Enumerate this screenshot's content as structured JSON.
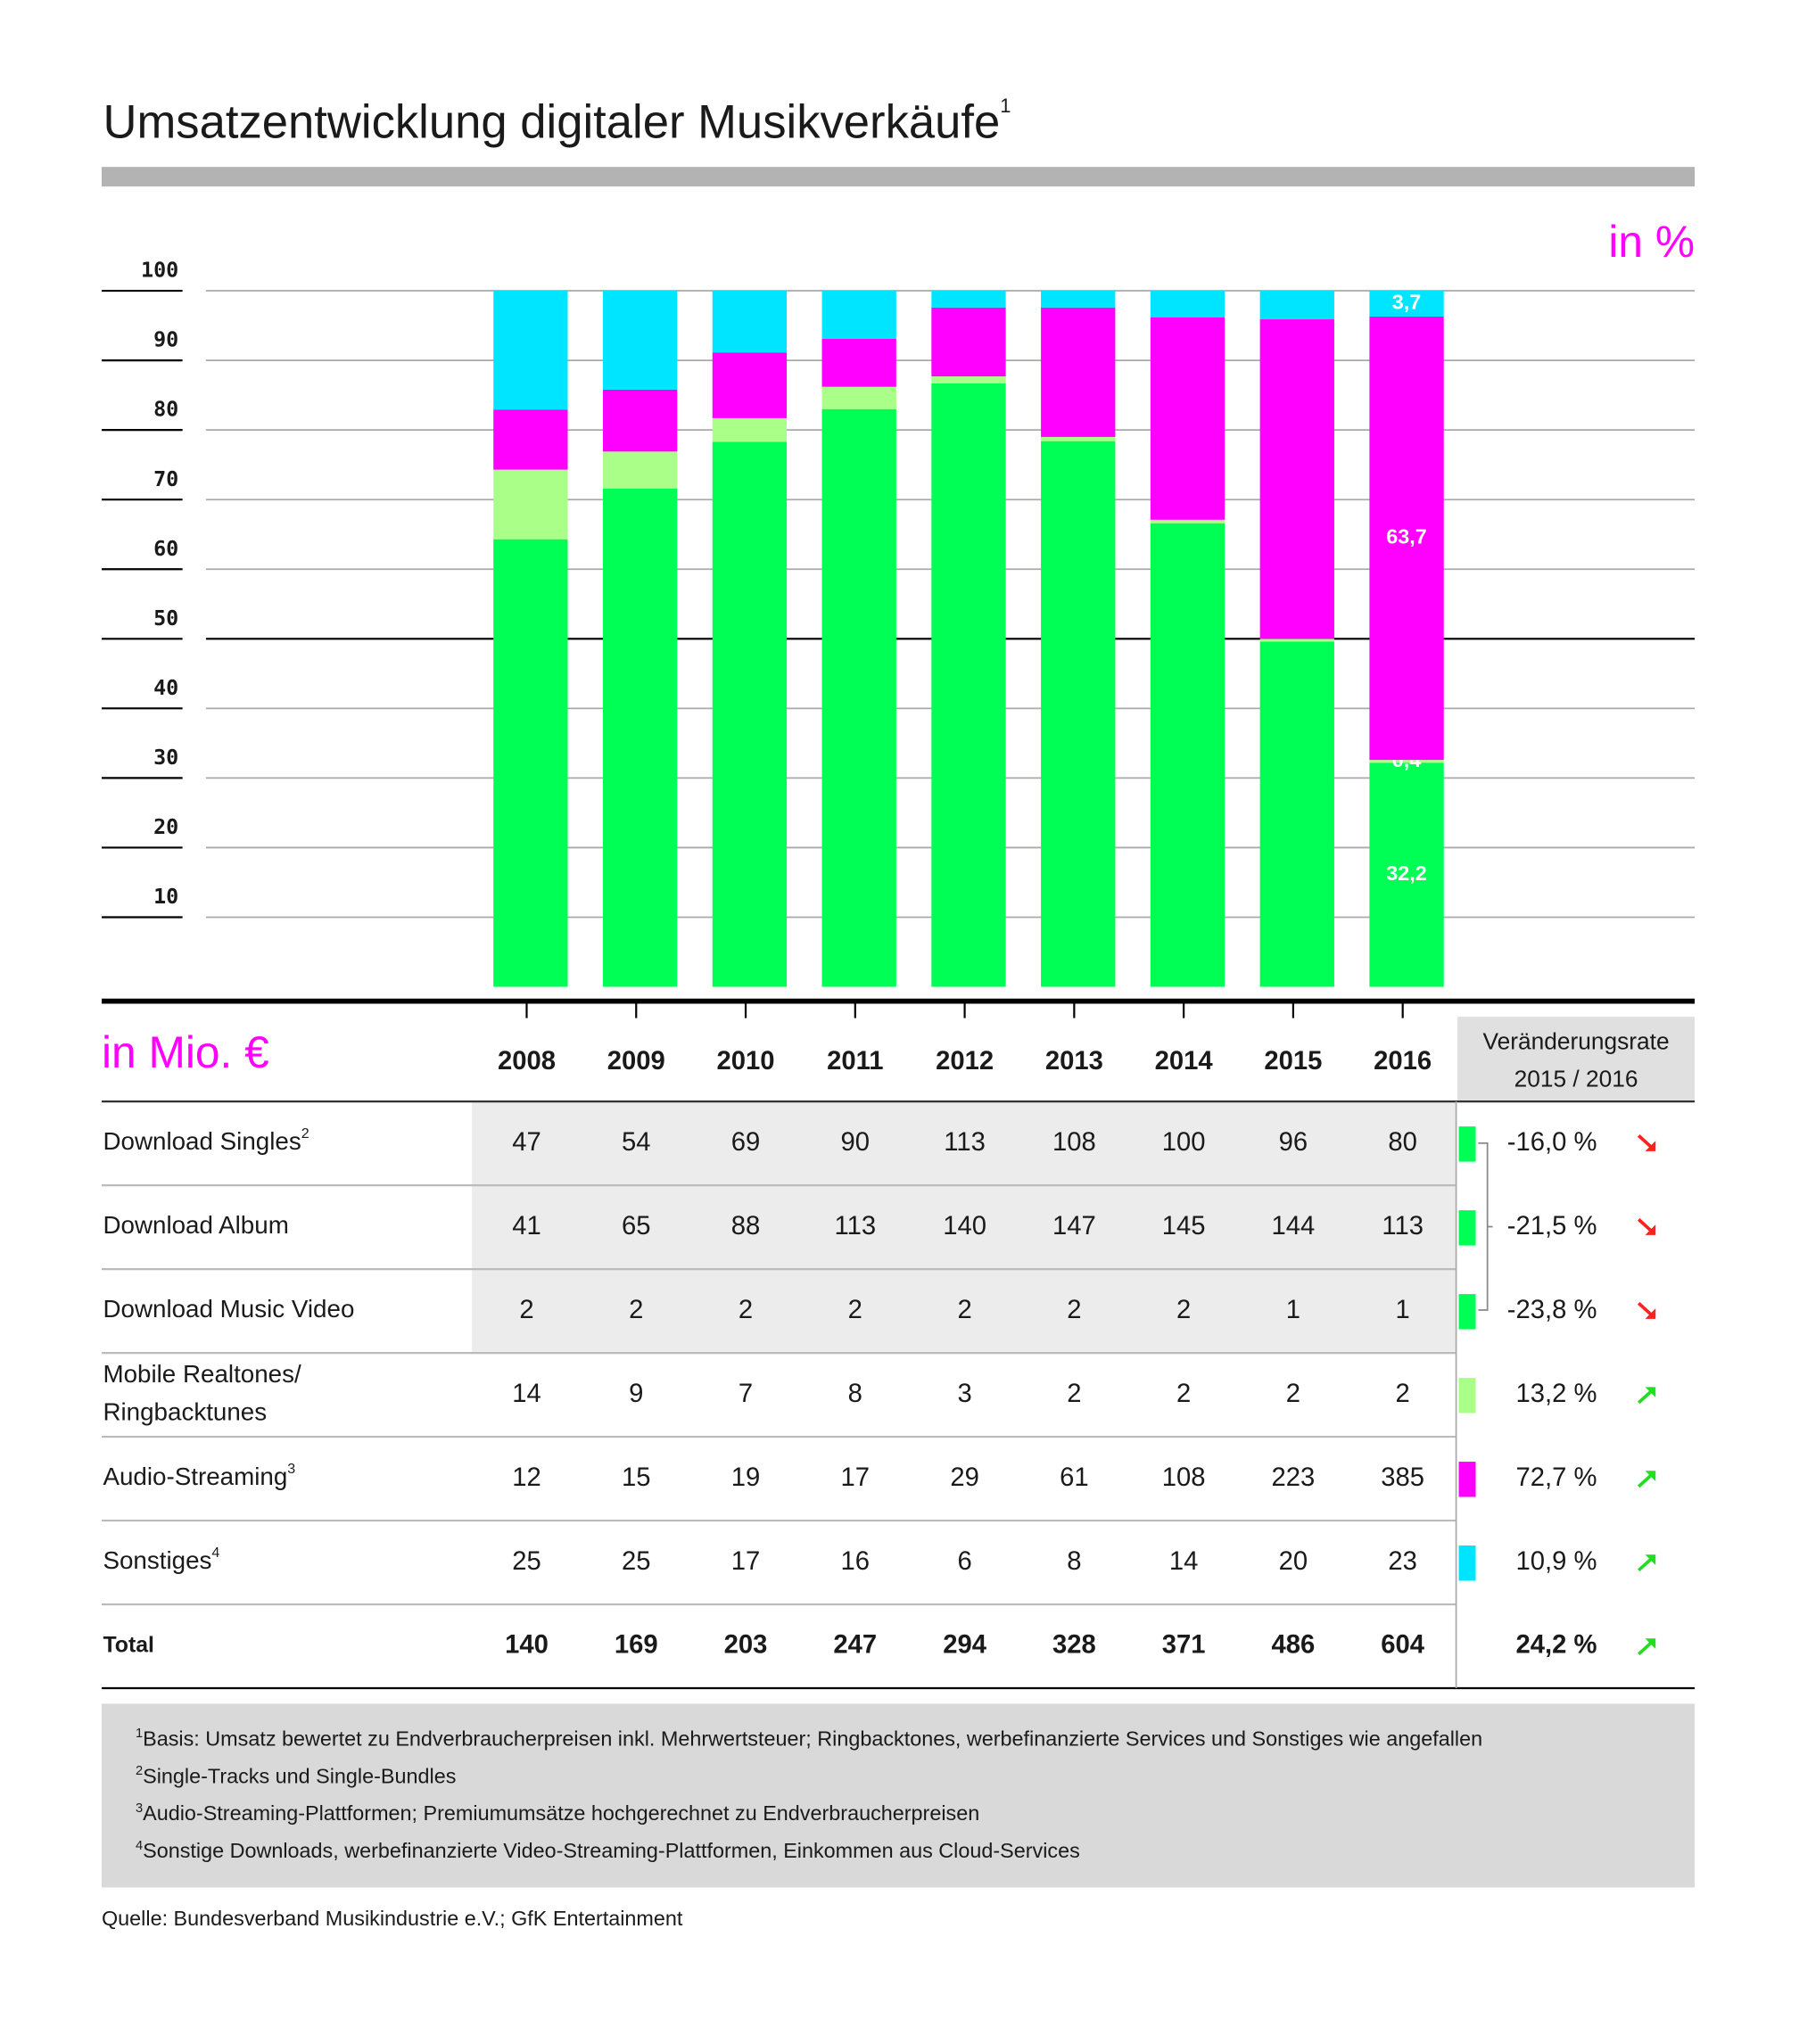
{
  "title": "Umsatzentwicklung digitaler Musikverkäufe",
  "title_sup": "1",
  "chart_data": {
    "type": "bar",
    "stacked": true,
    "annotation": "in %",
    "categories": [
      "2008",
      "2009",
      "2010",
      "2011",
      "2012",
      "2013",
      "2014",
      "2015",
      "2016"
    ],
    "series": [
      {
        "color": "#00ff55",
        "values": [
          64.3,
          71.6,
          78.3,
          83.0,
          86.7,
          78.4,
          66.6,
          49.6,
          32.2
        ],
        "value_labels": [
          null,
          null,
          null,
          null,
          null,
          null,
          null,
          null,
          "32,2"
        ]
      },
      {
        "color": "#aaff88",
        "values": [
          10.0,
          5.3,
          3.4,
          3.2,
          1.0,
          0.6,
          0.5,
          0.4,
          0.4
        ],
        "value_labels": [
          null,
          null,
          null,
          null,
          null,
          null,
          null,
          null,
          "0,4"
        ]
      },
      {
        "color": "#ff00ff",
        "values": [
          8.6,
          8.9,
          9.4,
          6.9,
          9.9,
          18.6,
          29.1,
          45.9,
          63.7
        ],
        "value_labels": [
          null,
          null,
          null,
          null,
          null,
          null,
          null,
          null,
          "63,7"
        ]
      },
      {
        "color": "#00e5ff",
        "values": [
          17.1,
          14.2,
          8.9,
          6.9,
          2.4,
          2.4,
          3.8,
          4.1,
          3.7
        ],
        "value_labels": [
          null,
          null,
          null,
          null,
          null,
          null,
          null,
          null,
          "3,7"
        ]
      }
    ],
    "ylim": [
      0,
      100
    ],
    "yticks": [
      10,
      20,
      30,
      40,
      50,
      60,
      70,
      80,
      90,
      100
    ],
    "grid": true,
    "reference_line": 50
  },
  "table": {
    "unit_label": "in Mio. €",
    "change_header": [
      "Veränderungsrate",
      "2015 / 2016"
    ],
    "rows": [
      {
        "label": [
          "Download Singles"
        ],
        "sup": "2",
        "values": [
          47,
          54,
          69,
          90,
          113,
          108,
          100,
          96,
          80
        ],
        "change": "-16,0 %",
        "trend": "down",
        "color": "#00ff55"
      },
      {
        "label": [
          "Download Album"
        ],
        "values": [
          41,
          65,
          88,
          113,
          140,
          147,
          145,
          144,
          113
        ],
        "change": "-21,5 %",
        "trend": "down",
        "color": "#00ff55"
      },
      {
        "label": [
          "Download Music Video"
        ],
        "values": [
          2,
          2,
          2,
          2,
          2,
          2,
          2,
          1,
          1
        ],
        "change": "-23,8 %",
        "trend": "down",
        "color": "#00ff55"
      },
      {
        "label": [
          "Mobile Realtones/",
          "Ringbacktunes"
        ],
        "values": [
          14,
          9,
          7,
          8,
          3,
          2,
          2,
          2,
          2
        ],
        "change": "13,2 %",
        "trend": "up",
        "color": "#aaff88"
      },
      {
        "label": [
          "Audio-Streaming"
        ],
        "sup": "3",
        "values": [
          12,
          15,
          19,
          17,
          29,
          61,
          108,
          223,
          385
        ],
        "change": "72,7 %",
        "trend": "up",
        "color": "#ff00ff"
      },
      {
        "label": [
          "Sonstiges"
        ],
        "sup": "4",
        "values": [
          25,
          25,
          17,
          16,
          6,
          8,
          14,
          20,
          23
        ],
        "change": "10,9 %",
        "trend": "up",
        "color": "#00e5ff"
      }
    ],
    "total": {
      "label": "Total",
      "values": [
        140,
        169,
        203,
        247,
        294,
        328,
        371,
        486,
        604
      ],
      "change": "24,2 %",
      "trend": "up"
    }
  },
  "footnotes": [
    {
      "mark": "1",
      "text": "Basis: Umsatz bewertet zu Endverbraucherpreisen inkl. Mehrwertsteuer; Ringbacktones, werbefinanzierte Services und Sonstiges wie angefallen"
    },
    {
      "mark": "2",
      "text": "Single-Tracks und Single-Bundles"
    },
    {
      "mark": "3",
      "text": "Audio-Streaming-Plattformen; Premiumumsätze hochgerechnet zu Endverbraucherpreisen"
    },
    {
      "mark": "4",
      "text": "Sonstige Downloads, werbefinanzierte Video-Streaming-Plattformen, Einkommen aus Cloud-Services"
    }
  ],
  "source": "Quelle: Bundesverband Musikindustrie e.V.; GfK Entertainment"
}
